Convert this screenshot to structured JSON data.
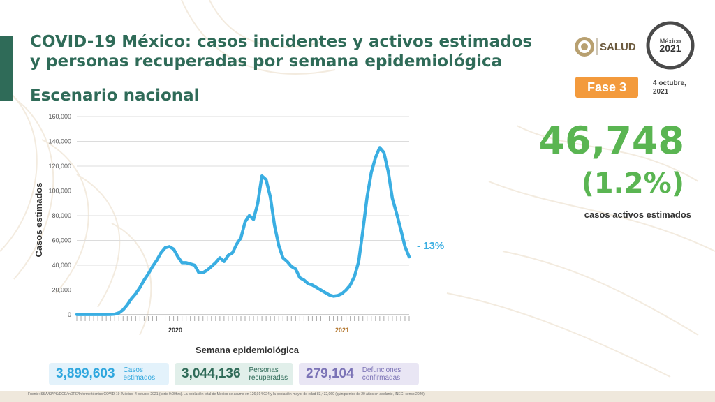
{
  "title": "COVID-19 México: casos incidentes y activos estimados y personas recuperadas por semana epidemiológica",
  "subtitle": "Escenario nacional",
  "logo": {
    "text": "SALUD",
    "icon": "eagle-emblem-icon"
  },
  "seal": {
    "year": "2021",
    "icon": "mexico-2021-seal-icon"
  },
  "phase_badge": "Fase 3",
  "date": "4 octubre, 2021",
  "active": {
    "count": "46,748",
    "percent": "(1.2%)",
    "label": "casos activos estimados"
  },
  "colors": {
    "primary_green": "#2f6b58",
    "accent_green": "#5ab552",
    "line_blue": "#3aaee2",
    "badge_orange": "#f39a3c"
  },
  "chart_data": {
    "type": "line",
    "ylabel": "Casos estimados",
    "xlabel": "Semana epidemiológica",
    "ylim": [
      0,
      160000
    ],
    "y_ticks": [
      "0",
      "20,000",
      "40,000",
      "60,000",
      "80,000",
      "100,000",
      "120,000",
      "140,000",
      "160,000"
    ],
    "x_year_labels": [
      "2020",
      "2021"
    ],
    "grid": true,
    "annotation": "- 13%",
    "series": [
      {
        "values": [
          200,
          200,
          200,
          200,
          200,
          200,
          200,
          200,
          300,
          500,
          1500,
          4000,
          8000,
          13000,
          17000,
          22000,
          28000,
          33000,
          39000,
          44000,
          50000,
          54000,
          55000,
          53000,
          47000,
          42000,
          42000,
          41000,
          40000,
          34000,
          34000,
          36000,
          39000,
          42000,
          46000,
          43000,
          48000,
          50000,
          57000,
          62000,
          75000,
          80000,
          77000,
          90000,
          112000,
          109000,
          95000,
          72000,
          56000,
          46000,
          43000,
          39000,
          37000,
          30000,
          28000,
          25000,
          24000,
          22000,
          20000,
          18000,
          16000,
          15000,
          15500,
          17000,
          20000,
          24000,
          31000,
          43000,
          68000,
          95000,
          115000,
          127000,
          135000,
          131000,
          116000,
          94000,
          82000,
          69000,
          55000,
          46748
        ]
      }
    ]
  },
  "stats": [
    {
      "value": "3,899,603",
      "label": "Casos estimados"
    },
    {
      "value": "3,044,136",
      "label": "Personas recuperadas"
    },
    {
      "value": "279,104",
      "label": "Defunciones confirmadas"
    }
  ],
  "footer": "Fuente: SSA/SPPS/DGE/InDRE/Informe técnico.COVID-19 /México- 4 octubre 2021 (corte 9:00hrs). La población total de México se asume en 126,014,024 y la población mayor de edad 83,432,060 (quinquenios de 20 años en adelante, INEGI censo 2020)"
}
